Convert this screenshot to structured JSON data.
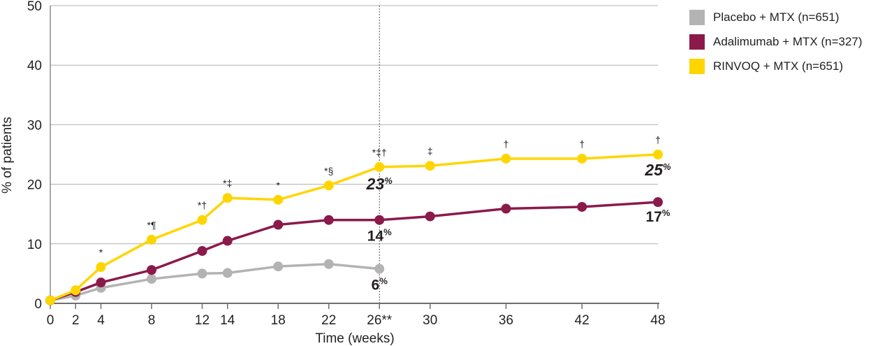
{
  "chart_data": {
    "type": "line",
    "title": "",
    "xlabel": "Time (weeks)",
    "ylabel": "% of patients",
    "ylim": [
      0,
      50
    ],
    "yticks": [
      "0",
      "10",
      "20",
      "30",
      "40",
      "50"
    ],
    "xticks": [
      {
        "x": 0,
        "label": "0"
      },
      {
        "x": 2,
        "label": "2"
      },
      {
        "x": 4,
        "label": "4"
      },
      {
        "x": 8,
        "label": "8"
      },
      {
        "x": 12,
        "label": "12"
      },
      {
        "x": 14,
        "label": "14"
      },
      {
        "x": 18,
        "label": "18"
      },
      {
        "x": 22,
        "label": "22"
      },
      {
        "x": 26,
        "label": "26**"
      },
      {
        "x": 30,
        "label": "30"
      },
      {
        "x": 36,
        "label": "36"
      },
      {
        "x": 42,
        "label": "42"
      },
      {
        "x": 48,
        "label": "48"
      }
    ],
    "xlim": [
      0,
      48
    ],
    "grid": "horizontal",
    "reference_line_x": 26,
    "legend_position": "top-right",
    "series": [
      {
        "name": "Placebo + MTX (n=651)",
        "color": "#b3b3b3",
        "x": [
          0,
          2,
          4,
          8,
          12,
          14,
          18,
          22,
          26
        ],
        "values": [
          0.5,
          1.3,
          2.6,
          4.1,
          5.0,
          5.1,
          6.2,
          6.6,
          5.8
        ],
        "end_label": {
          "x": 26,
          "value": "6",
          "unit": "%",
          "style": "bold"
        }
      },
      {
        "name": "Adalimumab + MTX (n=327)",
        "color": "#8b1a4b",
        "x": [
          0,
          2,
          4,
          8,
          12,
          14,
          18,
          22,
          26,
          30,
          36,
          42,
          48
        ],
        "values": [
          0.5,
          1.9,
          3.5,
          5.6,
          8.8,
          10.5,
          13.2,
          14.0,
          14.0,
          14.6,
          15.9,
          16.2,
          17.0
        ],
        "end_labels": [
          {
            "x": 26,
            "value": "14",
            "unit": "%",
            "style": "bold"
          },
          {
            "x": 48,
            "value": "17",
            "unit": "%",
            "style": "bold"
          }
        ]
      },
      {
        "name": "RINVOQ + MTX (n=651)",
        "color": "#ffd500",
        "x": [
          0,
          2,
          4,
          8,
          12,
          14,
          18,
          22,
          26,
          30,
          36,
          42,
          48
        ],
        "values": [
          0.5,
          2.2,
          6.1,
          10.7,
          14.0,
          17.7,
          17.4,
          19.8,
          22.9,
          23.1,
          24.3,
          24.3,
          25.0
        ],
        "end_labels": [
          {
            "x": 26,
            "value": "23",
            "unit": "%",
            "style": "italic"
          },
          {
            "x": 48,
            "value": "25",
            "unit": "%",
            "style": "italic"
          }
        ]
      }
    ],
    "significance_markers": [
      {
        "x": 4,
        "text": "*"
      },
      {
        "x": 8,
        "text": "*¶"
      },
      {
        "x": 12,
        "text": "*†"
      },
      {
        "x": 14,
        "text": "*‡"
      },
      {
        "x": 18,
        "text": "*"
      },
      {
        "x": 22,
        "text": "*§"
      },
      {
        "x": 26,
        "text": "*‡†"
      },
      {
        "x": 30,
        "text": "‡"
      },
      {
        "x": 36,
        "text": "†"
      },
      {
        "x": 42,
        "text": "†"
      },
      {
        "x": 48,
        "text": "†"
      }
    ]
  },
  "legend": {
    "items": [
      {
        "label": "Placebo + MTX (n=651)",
        "color": "#b3b3b3"
      },
      {
        "label": "Adalimumab + MTX (n=327)",
        "color": "#8b1a4b"
      },
      {
        "label": "RINVOQ + MTX (n=651)",
        "color": "#ffd500"
      }
    ]
  }
}
